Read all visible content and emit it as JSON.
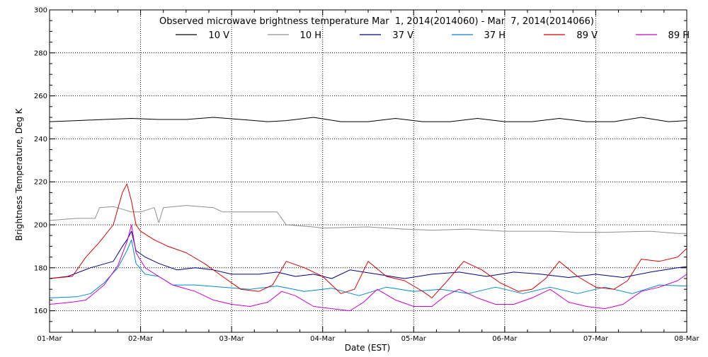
{
  "chart_data": {
    "type": "line",
    "title": "Observed microwave brightness temperature Mar  1, 2014(2014060) - Mar  7, 2014(2014066)",
    "xlabel": "Date (EST)",
    "ylabel": "Brightness Temperature, Deg K",
    "x_tick_labels": [
      "01-Mar",
      "02-Mar",
      "03-Mar",
      "04-Mar",
      "05-Mar",
      "06-Mar",
      "07-Mar",
      "08-Mar"
    ],
    "x_range_days": [
      0,
      7
    ],
    "ylim": [
      150,
      300
    ],
    "y_ticks": [
      160,
      180,
      200,
      220,
      240,
      260,
      280,
      300
    ],
    "grid": true,
    "legend_placement": "top-center",
    "series": [
      {
        "name": "10 V",
        "color": "#000000",
        "x": [
          0,
          0.3,
          0.6,
          0.9,
          1.2,
          1.5,
          1.8,
          2.1,
          2.4,
          2.6,
          2.9,
          3.2,
          3.5,
          3.8,
          4.1,
          4.4,
          4.7,
          5.0,
          5.3,
          5.6,
          5.9,
          6.2,
          6.5,
          6.8,
          7.0
        ],
        "values": [
          248,
          248.5,
          249,
          249.5,
          249,
          249,
          250,
          249,
          248,
          248.5,
          250,
          248,
          248,
          249.5,
          248,
          248,
          249.5,
          248,
          248,
          249.5,
          248,
          248,
          250,
          248,
          248.5
        ]
      },
      {
        "name": "10 H",
        "color": "#909090",
        "x": [
          0,
          0.3,
          0.5,
          0.55,
          0.7,
          0.9,
          1.0,
          1.15,
          1.2,
          1.25,
          1.5,
          1.8,
          1.9,
          2.4,
          2.5,
          2.6,
          2.9,
          3.0,
          3.5,
          3.9,
          4.2,
          4.6,
          5.0,
          5.5,
          5.8,
          6.1,
          6.6,
          6.9,
          7.0
        ],
        "values": [
          202,
          203,
          203,
          208,
          208.5,
          206,
          206,
          208,
          201,
          208,
          209,
          208,
          206,
          206,
          206,
          200,
          199,
          198.5,
          199,
          198,
          197.5,
          198,
          197,
          197,
          196.5,
          196.5,
          197,
          196,
          196
        ]
      },
      {
        "name": "37 V",
        "color": "#00008c",
        "x": [
          0,
          0.2,
          0.45,
          0.7,
          0.8,
          0.85,
          0.9,
          0.95,
          1.05,
          1.2,
          1.4,
          1.6,
          1.8,
          2.0,
          2.3,
          2.5,
          2.7,
          2.9,
          3.1,
          3.3,
          3.6,
          3.9,
          4.2,
          4.5,
          4.8,
          5.1,
          5.4,
          5.7,
          6.0,
          6.3,
          6.6,
          6.9,
          7.0
        ],
        "values": [
          175,
          176,
          180,
          183,
          190,
          193,
          197,
          188,
          185,
          182,
          179,
          180,
          179,
          177,
          177,
          178,
          176,
          177,
          175,
          179,
          177,
          175,
          177,
          178,
          176,
          178,
          177,
          175.5,
          177,
          175.5,
          178,
          180,
          180.5
        ]
      },
      {
        "name": "37 H",
        "color": "#0088cc",
        "x": [
          0,
          0.3,
          0.45,
          0.6,
          0.75,
          0.85,
          0.9,
          0.95,
          1.05,
          1.2,
          1.35,
          1.6,
          1.9,
          2.2,
          2.5,
          2.8,
          3.1,
          3.4,
          3.7,
          4.0,
          4.3,
          4.6,
          4.9,
          5.2,
          5.5,
          5.8,
          6.1,
          6.4,
          6.7,
          7.0
        ],
        "values": [
          166,
          166.5,
          168,
          173,
          180,
          188,
          193,
          182,
          177,
          176,
          172,
          172,
          171,
          170,
          171.5,
          169,
          170.5,
          167,
          171,
          169,
          170,
          168,
          171,
          168,
          171,
          168,
          171,
          168,
          172,
          171.5
        ]
      },
      {
        "name": "89 V",
        "color": "#dd0000",
        "x": [
          0,
          0.25,
          0.4,
          0.55,
          0.7,
          0.8,
          0.85,
          0.9,
          0.95,
          1.0,
          1.15,
          1.3,
          1.5,
          1.7,
          1.9,
          2.1,
          2.3,
          2.45,
          2.6,
          2.8,
          3.0,
          3.2,
          3.35,
          3.5,
          3.7,
          3.9,
          4.1,
          4.2,
          4.35,
          4.55,
          4.75,
          4.95,
          5.15,
          5.3,
          5.45,
          5.6,
          5.8,
          6.0,
          6.2,
          6.35,
          6.5,
          6.7,
          6.9,
          7.0
        ],
        "values": [
          175,
          176,
          185,
          192,
          200,
          215,
          219,
          211,
          200,
          197,
          193,
          190,
          187,
          182,
          176,
          170,
          169,
          172,
          183,
          180,
          176,
          168,
          170,
          183,
          176,
          174,
          169,
          166,
          173,
          183,
          179,
          173,
          169,
          170,
          175,
          183,
          176,
          171,
          170,
          174,
          184,
          183,
          185,
          189
        ]
      },
      {
        "name": "89 H",
        "color": "#cc00cc",
        "x": [
          0,
          0.25,
          0.4,
          0.6,
          0.75,
          0.85,
          0.9,
          0.95,
          1.05,
          1.2,
          1.35,
          1.6,
          1.8,
          2.0,
          2.2,
          2.4,
          2.55,
          2.7,
          2.9,
          3.1,
          3.3,
          3.45,
          3.6,
          3.8,
          4.0,
          4.2,
          4.35,
          4.5,
          4.7,
          4.9,
          5.1,
          5.3,
          5.5,
          5.7,
          5.9,
          6.1,
          6.3,
          6.5,
          6.7,
          6.9,
          7.0
        ],
        "values": [
          163,
          164,
          165,
          172,
          181,
          192,
          200,
          187,
          180,
          176,
          172,
          169,
          165,
          163,
          162,
          164,
          169,
          167,
          162,
          161,
          160,
          164,
          170,
          165,
          162,
          162,
          167,
          170,
          166,
          163,
          163,
          166,
          170,
          164,
          162,
          161,
          163,
          169,
          171,
          174,
          177
        ]
      }
    ]
  }
}
